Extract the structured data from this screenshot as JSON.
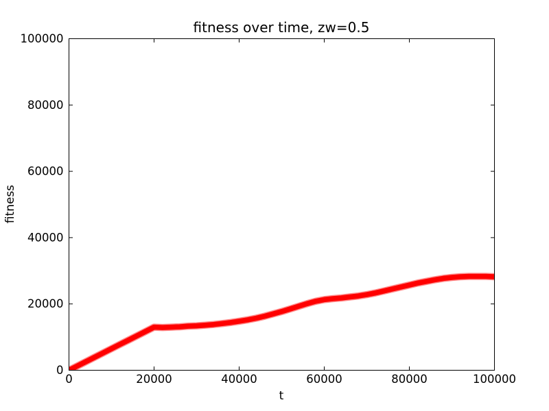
{
  "figure": {
    "background_color": "#ffffff",
    "axes_color": "#000000",
    "text_color": "#000000"
  },
  "chart_data": {
    "type": "line",
    "title": "fitness over time, zw=0.5",
    "xlabel": "t",
    "ylabel": "fitness",
    "xlim": [
      0,
      100000
    ],
    "ylim": [
      0,
      100000
    ],
    "xticks": [
      0,
      20000,
      40000,
      60000,
      80000,
      100000
    ],
    "yticks": [
      0,
      20000,
      40000,
      60000,
      80000,
      100000
    ],
    "grid": false,
    "legend": null,
    "tick_style": "inward-all-four-sides",
    "series": [
      {
        "name": "fitness",
        "color": "#ff0000",
        "marker": "dense-x-band",
        "x": [
          0,
          2000,
          4000,
          6000,
          8000,
          10000,
          12000,
          14000,
          16000,
          18000,
          20000,
          22000,
          24000,
          26000,
          28000,
          30000,
          32000,
          34000,
          36000,
          38000,
          40000,
          42000,
          44000,
          46000,
          48000,
          50000,
          52000,
          54000,
          56000,
          58000,
          60000,
          62000,
          64000,
          66000,
          68000,
          70000,
          72000,
          74000,
          76000,
          78000,
          80000,
          82000,
          84000,
          86000,
          88000,
          90000,
          92000,
          94000,
          96000,
          98000,
          100000
        ],
        "y": [
          0,
          1300,
          2600,
          3900,
          5200,
          6500,
          7800,
          9100,
          10400,
          11700,
          13000,
          12900,
          13000,
          13100,
          13300,
          13400,
          13600,
          13800,
          14100,
          14400,
          14800,
          15200,
          15700,
          16300,
          17000,
          17700,
          18500,
          19300,
          20100,
          20800,
          21300,
          21600,
          21800,
          22100,
          22400,
          22800,
          23300,
          23900,
          24500,
          25100,
          25700,
          26300,
          26800,
          27300,
          27700,
          28000,
          28200,
          28300,
          28300,
          28300,
          28200
        ]
      }
    ]
  }
}
